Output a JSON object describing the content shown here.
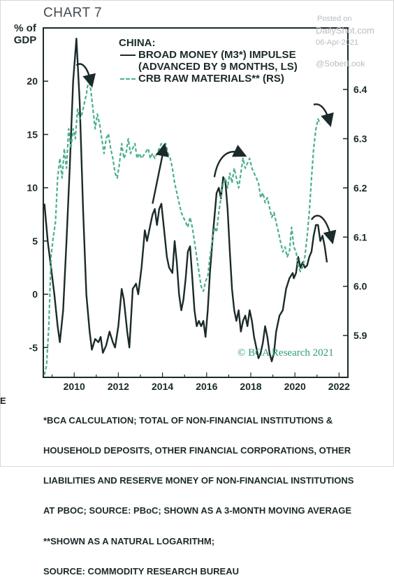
{
  "header": {
    "title": "CHART 7"
  },
  "watermark": {
    "posted": "Posted on",
    "site": "DailyShot.com",
    "date": "06-Apr-2021",
    "handle": "@SoberLook"
  },
  "axis_left_unit": {
    "line1": "% of",
    "line2": "GDP"
  },
  "legend": {
    "heading": "CHINA:",
    "series1_line1": "BROAD MONEY (M3*) IMPULSE",
    "series1_line2": "(ADVANCED BY 9 MONTHS, LS)",
    "series2": "CRB RAW MATERIALS** (RS)"
  },
  "copyright": "© BCA Research 2021",
  "stray_letter": "E",
  "footnote": {
    "lines": [
      "*BCA CALCULATION; TOTAL OF NON-FINANCIAL INSTITUTIONS &",
      "HOUSEHOLD DEPOSITS, OTHER FINANCIAL CORPORATIONS, OTHER",
      "LIABILITIES AND RESERVE MONEY OF NON-FINANCIAL INSTITUTIONS",
      "AT PBOC; SOURCE: PBoC; SHOWN AS A 3-MONTH MOVING AVERAGE",
      "**SHOWN AS A NATURAL LOGARITHM;",
      "SOURCE: COMMODITY RESEARCH BUREAU"
    ]
  },
  "colors": {
    "money": "#1b2a2a",
    "crb": "#4caf8e",
    "grid": "#cfd8d4",
    "axis": "#1b2a2a"
  },
  "chart_data": {
    "type": "line",
    "title": "CHART 7",
    "xlim": [
      2008.6,
      2022.4
    ],
    "x_ticks": [
      2010,
      2012,
      2014,
      2016,
      2018,
      2020,
      2022
    ],
    "y_left": {
      "lim": [
        -7.8,
        25
      ],
      "ticks": [
        -5,
        0,
        5,
        10,
        15,
        20
      ],
      "unit": "% of GDP"
    },
    "y_right": {
      "lim": [
        5.815,
        6.525
      ],
      "ticks": [
        5.9,
        6.0,
        6.1,
        6.2,
        6.3,
        6.4
      ]
    },
    "series": [
      {
        "name": "BROAD MONEY (M3*) IMPULSE (ADVANCED BY 9 MONTHS, LS)",
        "axis": "left",
        "style": "solid",
        "points": [
          [
            2008.65,
            8.5
          ],
          [
            2008.8,
            5.0
          ],
          [
            2008.95,
            2.5
          ],
          [
            2009.1,
            0.0
          ],
          [
            2009.25,
            -3.0
          ],
          [
            2009.35,
            -4.5
          ],
          [
            2009.5,
            -1.5
          ],
          [
            2009.65,
            5.0
          ],
          [
            2009.8,
            12.0
          ],
          [
            2009.95,
            20.0
          ],
          [
            2010.1,
            24.0
          ],
          [
            2010.25,
            18.0
          ],
          [
            2010.4,
            8.0
          ],
          [
            2010.55,
            0.0
          ],
          [
            2010.7,
            -3.5
          ],
          [
            2010.8,
            -5.2
          ],
          [
            2010.95,
            -4.2
          ],
          [
            2011.1,
            -4.5
          ],
          [
            2011.2,
            -4.0
          ],
          [
            2011.3,
            -5.5
          ],
          [
            2011.45,
            -4.8
          ],
          [
            2011.6,
            -3.5
          ],
          [
            2011.75,
            -4.5
          ],
          [
            2011.85,
            -5.0
          ],
          [
            2012.0,
            -3.0
          ],
          [
            2012.15,
            0.5
          ],
          [
            2012.25,
            -0.5
          ],
          [
            2012.4,
            -3.5
          ],
          [
            2012.5,
            -5.0
          ],
          [
            2012.65,
            0.5
          ],
          [
            2012.8,
            1.0
          ],
          [
            2012.9,
            0.0
          ],
          [
            2013.05,
            2.5
          ],
          [
            2013.2,
            6.0
          ],
          [
            2013.3,
            5.0
          ],
          [
            2013.45,
            6.5
          ],
          [
            2013.55,
            7.5
          ],
          [
            2013.65,
            8.0
          ],
          [
            2013.75,
            6.5
          ],
          [
            2013.85,
            8.0
          ],
          [
            2013.95,
            8.5
          ],
          [
            2014.05,
            6.5
          ],
          [
            2014.2,
            3.5
          ],
          [
            2014.3,
            2.5
          ],
          [
            2014.45,
            2.0
          ],
          [
            2014.55,
            5.0
          ],
          [
            2014.65,
            3.0
          ],
          [
            2014.75,
            0.0
          ],
          [
            2014.85,
            -1.5
          ],
          [
            2014.95,
            -0.5
          ],
          [
            2015.05,
            1.5
          ],
          [
            2015.15,
            4.0
          ],
          [
            2015.25,
            4.5
          ],
          [
            2015.35,
            1.5
          ],
          [
            2015.45,
            -1.5
          ],
          [
            2015.55,
            -3.0
          ],
          [
            2015.65,
            -2.5
          ],
          [
            2015.75,
            -3.0
          ],
          [
            2015.85,
            -2.5
          ],
          [
            2015.95,
            -4.0
          ],
          [
            2016.05,
            -1.5
          ],
          [
            2016.15,
            2.0
          ],
          [
            2016.3,
            6.0
          ],
          [
            2016.45,
            9.5
          ],
          [
            2016.55,
            10.0
          ],
          [
            2016.65,
            9.0
          ],
          [
            2016.75,
            11.0
          ],
          [
            2016.85,
            10.5
          ],
          [
            2016.95,
            8.0
          ],
          [
            2017.05,
            4.0
          ],
          [
            2017.15,
            0.5
          ],
          [
            2017.25,
            -1.5
          ],
          [
            2017.35,
            -2.5
          ],
          [
            2017.45,
            -1.5
          ],
          [
            2017.55,
            -3.5
          ],
          [
            2017.65,
            -2.5
          ],
          [
            2017.75,
            -2.0
          ],
          [
            2017.85,
            -3.0
          ],
          [
            2017.95,
            -1.5
          ],
          [
            2018.05,
            -2.5
          ],
          [
            2018.15,
            -4.0
          ],
          [
            2018.25,
            -5.0
          ],
          [
            2018.35,
            -6.0
          ],
          [
            2018.45,
            -5.5
          ],
          [
            2018.55,
            -4.5
          ],
          [
            2018.65,
            -3.0
          ],
          [
            2018.75,
            -4.0
          ],
          [
            2018.85,
            -5.5
          ],
          [
            2018.95,
            -6.3
          ],
          [
            2019.05,
            -5.5
          ],
          [
            2019.15,
            -3.5
          ],
          [
            2019.3,
            -2.0
          ],
          [
            2019.45,
            -1.5
          ],
          [
            2019.6,
            0.5
          ],
          [
            2019.75,
            1.5
          ],
          [
            2019.9,
            2.0
          ],
          [
            2019.95,
            1.5
          ],
          [
            2020.05,
            2.0
          ],
          [
            2020.15,
            3.5
          ],
          [
            2020.25,
            2.5
          ],
          [
            2020.35,
            3.0
          ],
          [
            2020.45,
            2.5
          ],
          [
            2020.55,
            2.7
          ],
          [
            2020.65,
            3.5
          ],
          [
            2020.75,
            4.0
          ],
          [
            2020.85,
            5.5
          ],
          [
            2020.95,
            6.5
          ],
          [
            2021.05,
            6.5
          ],
          [
            2021.15,
            5.0
          ],
          [
            2021.25,
            5.5
          ],
          [
            2021.35,
            4.5
          ],
          [
            2021.45,
            3.0
          ]
        ]
      },
      {
        "name": "CRB RAW MATERIALS** (RS)",
        "axis": "right",
        "style": "dashed",
        "points": [
          [
            2008.65,
            5.82
          ],
          [
            2008.75,
            5.84
          ],
          [
            2008.85,
            5.92
          ],
          [
            2008.95,
            6.06
          ],
          [
            2009.05,
            6.1
          ],
          [
            2009.15,
            6.13
          ],
          [
            2009.25,
            6.22
          ],
          [
            2009.35,
            6.26
          ],
          [
            2009.45,
            6.22
          ],
          [
            2009.55,
            6.28
          ],
          [
            2009.65,
            6.24
          ],
          [
            2009.75,
            6.32
          ],
          [
            2009.85,
            6.28
          ],
          [
            2009.95,
            6.32
          ],
          [
            2010.05,
            6.3
          ],
          [
            2010.15,
            6.36
          ],
          [
            2010.25,
            6.34
          ],
          [
            2010.35,
            6.35
          ],
          [
            2010.45,
            6.37
          ],
          [
            2010.55,
            6.39
          ],
          [
            2010.65,
            6.42
          ],
          [
            2010.75,
            6.4
          ],
          [
            2010.85,
            6.36
          ],
          [
            2010.95,
            6.32
          ],
          [
            2011.05,
            6.35
          ],
          [
            2011.15,
            6.33
          ],
          [
            2011.25,
            6.3
          ],
          [
            2011.35,
            6.27
          ],
          [
            2011.45,
            6.3
          ],
          [
            2011.55,
            6.31
          ],
          [
            2011.65,
            6.28
          ],
          [
            2011.75,
            6.26
          ],
          [
            2011.85,
            6.23
          ],
          [
            2011.95,
            6.22
          ],
          [
            2012.05,
            6.25
          ],
          [
            2012.15,
            6.29
          ],
          [
            2012.25,
            6.26
          ],
          [
            2012.35,
            6.27
          ],
          [
            2012.45,
            6.3
          ],
          [
            2012.55,
            6.27
          ],
          [
            2012.65,
            6.28
          ],
          [
            2012.75,
            6.29
          ],
          [
            2012.85,
            6.26
          ],
          [
            2012.95,
            6.27
          ],
          [
            2013.05,
            6.26
          ],
          [
            2013.2,
            6.27
          ],
          [
            2013.35,
            6.28
          ],
          [
            2013.45,
            6.26
          ],
          [
            2013.55,
            6.27
          ],
          [
            2013.65,
            6.26
          ],
          [
            2013.75,
            6.27
          ],
          [
            2013.85,
            6.28
          ],
          [
            2013.95,
            6.29
          ],
          [
            2014.05,
            6.28
          ],
          [
            2014.15,
            6.29
          ],
          [
            2014.25,
            6.27
          ],
          [
            2014.35,
            6.26
          ],
          [
            2014.45,
            6.24
          ],
          [
            2014.55,
            6.21
          ],
          [
            2014.65,
            6.19
          ],
          [
            2014.75,
            6.17
          ],
          [
            2014.85,
            6.15
          ],
          [
            2014.95,
            6.14
          ],
          [
            2015.05,
            6.13
          ],
          [
            2015.15,
            6.12
          ],
          [
            2015.25,
            6.14
          ],
          [
            2015.35,
            6.12
          ],
          [
            2015.45,
            6.09
          ],
          [
            2015.55,
            6.06
          ],
          [
            2015.65,
            6.03
          ],
          [
            2015.75,
            6.0
          ],
          [
            2015.85,
            5.99
          ],
          [
            2015.95,
            6.01
          ],
          [
            2016.05,
            6.02
          ],
          [
            2016.15,
            6.06
          ],
          [
            2016.25,
            6.09
          ],
          [
            2016.35,
            6.12
          ],
          [
            2016.45,
            6.11
          ],
          [
            2016.55,
            6.15
          ],
          [
            2016.65,
            6.18
          ],
          [
            2016.75,
            6.21
          ],
          [
            2016.85,
            6.22
          ],
          [
            2016.95,
            6.2
          ],
          [
            2017.05,
            6.23
          ],
          [
            2017.15,
            6.21
          ],
          [
            2017.25,
            6.24
          ],
          [
            2017.35,
            6.22
          ],
          [
            2017.45,
            6.2
          ],
          [
            2017.55,
            6.23
          ],
          [
            2017.65,
            6.26
          ],
          [
            2017.75,
            6.24
          ],
          [
            2017.85,
            6.25
          ],
          [
            2017.95,
            6.26
          ],
          [
            2018.05,
            6.24
          ],
          [
            2018.15,
            6.23
          ],
          [
            2018.25,
            6.22
          ],
          [
            2018.35,
            6.21
          ],
          [
            2018.45,
            6.18
          ],
          [
            2018.55,
            6.19
          ],
          [
            2018.65,
            6.17
          ],
          [
            2018.75,
            6.18
          ],
          [
            2018.85,
            6.16
          ],
          [
            2018.95,
            6.14
          ],
          [
            2019.05,
            6.15
          ],
          [
            2019.15,
            6.13
          ],
          [
            2019.25,
            6.11
          ],
          [
            2019.35,
            6.09
          ],
          [
            2019.45,
            6.07
          ],
          [
            2019.55,
            6.08
          ],
          [
            2019.65,
            6.06
          ],
          [
            2019.75,
            6.07
          ],
          [
            2019.85,
            6.12
          ],
          [
            2019.95,
            6.08
          ],
          [
            2020.05,
            6.07
          ],
          [
            2020.15,
            6.04
          ],
          [
            2020.25,
            6.03
          ],
          [
            2020.35,
            6.04
          ],
          [
            2020.45,
            6.06
          ],
          [
            2020.55,
            6.1
          ],
          [
            2020.65,
            6.15
          ],
          [
            2020.75,
            6.22
          ],
          [
            2020.85,
            6.28
          ],
          [
            2020.95,
            6.32
          ],
          [
            2021.05,
            6.34
          ],
          [
            2021.15,
            6.33
          ]
        ]
      }
    ],
    "annotations": [
      {
        "type": "arrow",
        "path": [
          [
            2010.1,
            21.5
          ],
          [
            2010.35,
            21.9
          ],
          [
            2010.6,
            21.3
          ],
          [
            2010.75,
            20.0
          ]
        ]
      },
      {
        "type": "arrow",
        "path": [
          [
            2013.55,
            8.5
          ],
          [
            2013.75,
            10.5
          ],
          [
            2013.9,
            12.0
          ],
          [
            2014.05,
            13.6
          ]
        ]
      },
      {
        "type": "arrow",
        "path": [
          [
            2016.35,
            11.0
          ],
          [
            2016.5,
            12.8
          ],
          [
            2016.95,
            13.8
          ],
          [
            2017.55,
            13.2
          ]
        ]
      },
      {
        "type": "arrow",
        "path": [
          [
            2020.85,
            17.8
          ],
          [
            2021.15,
            18.0
          ],
          [
            2021.4,
            17.4
          ],
          [
            2021.55,
            16.3
          ]
        ]
      },
      {
        "type": "arrow",
        "path": [
          [
            2020.75,
            7.0
          ],
          [
            2021.0,
            7.8
          ],
          [
            2021.4,
            7.4
          ],
          [
            2021.65,
            5.3
          ]
        ]
      }
    ]
  }
}
